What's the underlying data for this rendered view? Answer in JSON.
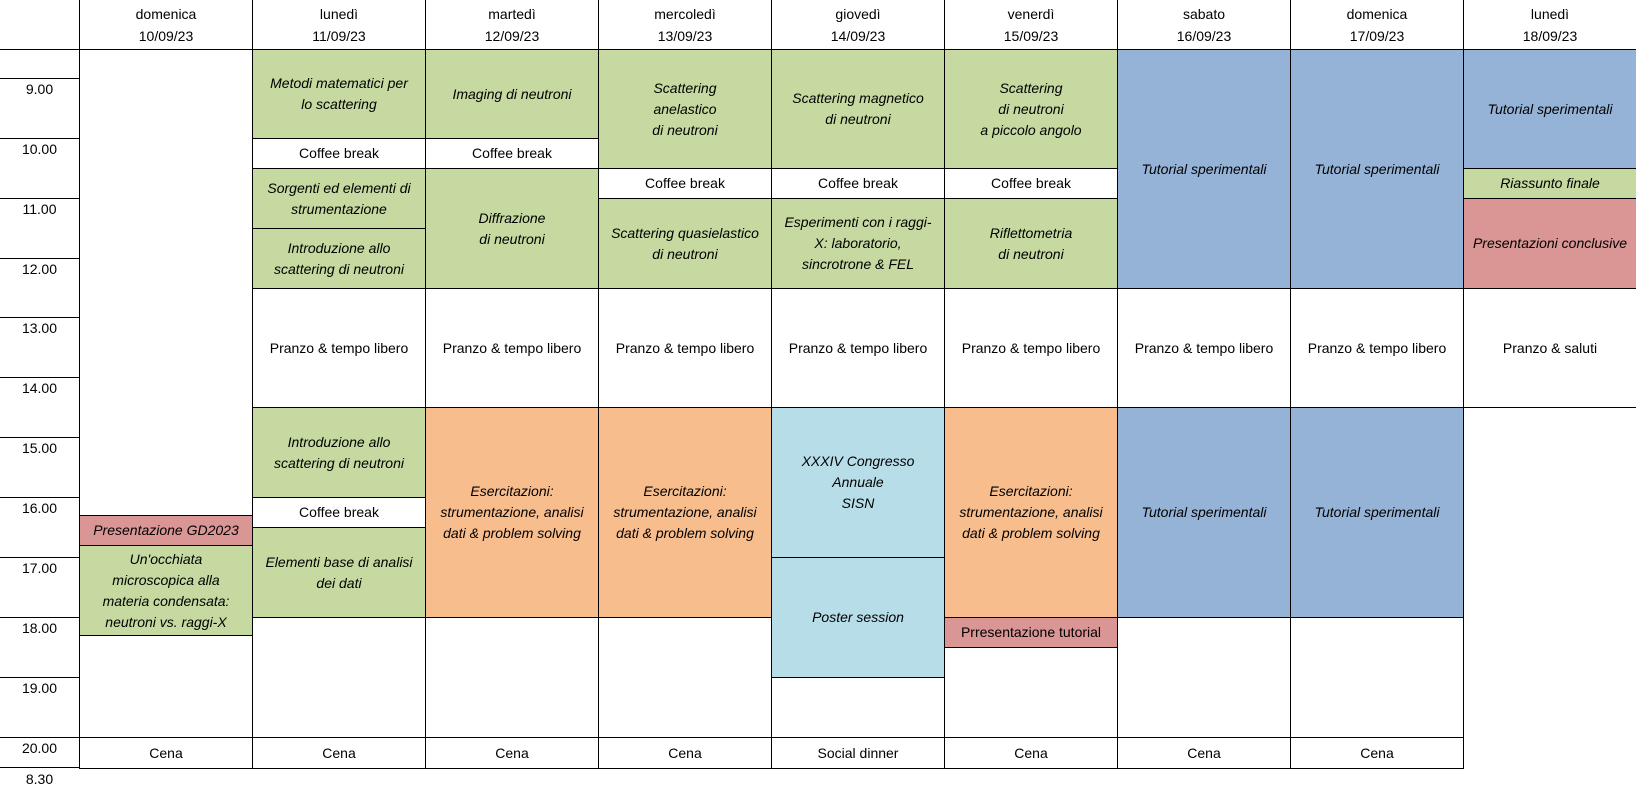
{
  "days": [
    {
      "name": "domenica",
      "date": "10/09/23"
    },
    {
      "name": "lunedì",
      "date": "11/09/23"
    },
    {
      "name": "martedì",
      "date": "12/09/23"
    },
    {
      "name": "mercoledì",
      "date": "13/09/23"
    },
    {
      "name": "giovedì",
      "date": "14/09/23"
    },
    {
      "name": "venerdì",
      "date": "15/09/23"
    },
    {
      "name": "sabato",
      "date": "16/09/23"
    },
    {
      "name": "domenica",
      "date": "17/09/23"
    },
    {
      "name": "lunedì",
      "date": "18/09/23"
    }
  ],
  "times": [
    "8.30",
    "9.00",
    "10.00",
    "11.00",
    "12.00",
    "13.00",
    "14.00",
    "15.00",
    "16.00",
    "17.00",
    "18.00",
    "19.00",
    "20.00"
  ],
  "colors": {
    "green": "#c5d9a0",
    "blue": "#95b3d7",
    "orange": "#f8bd8d",
    "pink": "#da9595",
    "cyan": "#b7dde8",
    "white": "#ffffff"
  },
  "events": [
    {
      "day": 0,
      "start": 8.5,
      "end": 16.3,
      "text": "",
      "color": "white",
      "italic": false
    },
    {
      "day": 0,
      "start": 16.3,
      "end": 16.8,
      "text": "Presentazione GD2023",
      "color": "pink",
      "italic": true
    },
    {
      "day": 0,
      "start": 16.8,
      "end": 18.3,
      "text": "Un'occhiata\nmicroscopica alla\nmateria condensata:\nneutroni vs. raggi-X",
      "color": "green",
      "italic": true
    },
    {
      "day": 0,
      "start": 18.3,
      "end": 20.0,
      "text": "",
      "color": "white",
      "italic": false
    },
    {
      "day": 0,
      "start": 20.0,
      "end": 20.5,
      "text": "Cena",
      "color": "white",
      "italic": false
    },
    {
      "day": 1,
      "start": 8.5,
      "end": 10.0,
      "text": "Metodi matematici per\nlo scattering",
      "color": "green",
      "italic": true
    },
    {
      "day": 1,
      "start": 10.0,
      "end": 10.5,
      "text": "Coffee break",
      "color": "white",
      "italic": false
    },
    {
      "day": 1,
      "start": 10.5,
      "end": 11.5,
      "text": "Sorgenti ed elementi di\nstrumentazione",
      "color": "green",
      "italic": true
    },
    {
      "day": 1,
      "start": 11.5,
      "end": 12.5,
      "text": "Introduzione allo\nscattering di neutroni",
      "color": "green",
      "italic": true
    },
    {
      "day": 1,
      "start": 12.5,
      "end": 14.5,
      "text": "Pranzo & tempo libero",
      "color": "white",
      "italic": false
    },
    {
      "day": 1,
      "start": 14.5,
      "end": 16.0,
      "text": "Introduzione allo\nscattering di neutroni",
      "color": "green",
      "italic": true
    },
    {
      "day": 1,
      "start": 16.0,
      "end": 16.5,
      "text": "Coffee break",
      "color": "white",
      "italic": false
    },
    {
      "day": 1,
      "start": 16.5,
      "end": 18.0,
      "text": "Elementi base di analisi\ndei dati",
      "color": "green",
      "italic": true
    },
    {
      "day": 1,
      "start": 18.0,
      "end": 20.0,
      "text": "",
      "color": "white",
      "italic": false
    },
    {
      "day": 1,
      "start": 20.0,
      "end": 20.5,
      "text": "Cena",
      "color": "white",
      "italic": false
    },
    {
      "day": 2,
      "start": 8.5,
      "end": 10.0,
      "text": "Imaging di neutroni",
      "color": "green",
      "italic": true
    },
    {
      "day": 2,
      "start": 10.0,
      "end": 10.5,
      "text": "Coffee break",
      "color": "white",
      "italic": false
    },
    {
      "day": 2,
      "start": 10.5,
      "end": 12.5,
      "text": "Diffrazione\ndi neutroni",
      "color": "green",
      "italic": true
    },
    {
      "day": 2,
      "start": 12.5,
      "end": 14.5,
      "text": "Pranzo & tempo libero",
      "color": "white",
      "italic": false
    },
    {
      "day": 2,
      "start": 14.5,
      "end": 18.0,
      "text": "Esercitazioni:\nstrumentazione, analisi\ndati & problem solving",
      "color": "orange",
      "italic": true
    },
    {
      "day": 2,
      "start": 18.0,
      "end": 20.0,
      "text": "",
      "color": "white",
      "italic": false
    },
    {
      "day": 2,
      "start": 20.0,
      "end": 20.5,
      "text": "Cena",
      "color": "white",
      "italic": false
    },
    {
      "day": 3,
      "start": 8.5,
      "end": 10.5,
      "text": "Scattering\nanelastico\ndi neutroni",
      "color": "green",
      "italic": true
    },
    {
      "day": 3,
      "start": 10.5,
      "end": 11.0,
      "text": "Coffee break",
      "color": "white",
      "italic": false
    },
    {
      "day": 3,
      "start": 11.0,
      "end": 12.5,
      "text": "Scattering quasielastico\ndi neutroni",
      "color": "green",
      "italic": true
    },
    {
      "day": 3,
      "start": 12.5,
      "end": 14.5,
      "text": "Pranzo & tempo libero",
      "color": "white",
      "italic": false
    },
    {
      "day": 3,
      "start": 14.5,
      "end": 18.0,
      "text": "Esercitazioni:\nstrumentazione, analisi\ndati & problem solving",
      "color": "orange",
      "italic": true
    },
    {
      "day": 3,
      "start": 18.0,
      "end": 20.0,
      "text": "",
      "color": "white",
      "italic": false
    },
    {
      "day": 3,
      "start": 20.0,
      "end": 20.5,
      "text": "Cena",
      "color": "white",
      "italic": false
    },
    {
      "day": 4,
      "start": 8.5,
      "end": 10.5,
      "text": "Scattering magnetico\ndi neutroni",
      "color": "green",
      "italic": true
    },
    {
      "day": 4,
      "start": 10.5,
      "end": 11.0,
      "text": "Coffee break",
      "color": "white",
      "italic": false
    },
    {
      "day": 4,
      "start": 11.0,
      "end": 12.5,
      "text": "Esperimenti con i raggi-\nX: laboratorio,\nsincrotrone & FEL",
      "color": "green",
      "italic": true
    },
    {
      "day": 4,
      "start": 12.5,
      "end": 14.5,
      "text": "Pranzo & tempo libero",
      "color": "white",
      "italic": false
    },
    {
      "day": 4,
      "start": 14.5,
      "end": 17.0,
      "text": "XXXIV Congresso Annuale\nSISN",
      "color": "cyan",
      "italic": true
    },
    {
      "day": 4,
      "start": 17.0,
      "end": 19.0,
      "text": "Poster session",
      "color": "cyan",
      "italic": true
    },
    {
      "day": 4,
      "start": 19.0,
      "end": 20.0,
      "text": "",
      "color": "white",
      "italic": false
    },
    {
      "day": 4,
      "start": 20.0,
      "end": 20.5,
      "text": "Social dinner",
      "color": "white",
      "italic": false
    },
    {
      "day": 5,
      "start": 8.5,
      "end": 10.5,
      "text": "Scattering\ndi neutroni\na piccolo angolo",
      "color": "green",
      "italic": true
    },
    {
      "day": 5,
      "start": 10.5,
      "end": 11.0,
      "text": "Coffee break",
      "color": "white",
      "italic": false
    },
    {
      "day": 5,
      "start": 11.0,
      "end": 12.5,
      "text": "Riflettometria\ndi neutroni",
      "color": "green",
      "italic": true
    },
    {
      "day": 5,
      "start": 12.5,
      "end": 14.5,
      "text": "Pranzo & tempo libero",
      "color": "white",
      "italic": false
    },
    {
      "day": 5,
      "start": 14.5,
      "end": 18.0,
      "text": "Esercitazioni:\nstrumentazione, analisi\ndati & problem solving",
      "color": "orange",
      "italic": true
    },
    {
      "day": 5,
      "start": 18.0,
      "end": 18.5,
      "text": "Prresentazione tutorial",
      "color": "pink",
      "italic": false
    },
    {
      "day": 5,
      "start": 18.5,
      "end": 20.0,
      "text": "",
      "color": "white",
      "italic": false
    },
    {
      "day": 5,
      "start": 20.0,
      "end": 20.5,
      "text": "Cena",
      "color": "white",
      "italic": false
    },
    {
      "day": 6,
      "start": 8.5,
      "end": 12.5,
      "text": "Tutorial sperimentali",
      "color": "blue",
      "italic": true
    },
    {
      "day": 6,
      "start": 12.5,
      "end": 14.5,
      "text": "Pranzo & tempo libero",
      "color": "white",
      "italic": false
    },
    {
      "day": 6,
      "start": 14.5,
      "end": 18.0,
      "text": "Tutorial sperimentali",
      "color": "blue",
      "italic": true
    },
    {
      "day": 6,
      "start": 18.0,
      "end": 20.0,
      "text": "",
      "color": "white",
      "italic": false
    },
    {
      "day": 6,
      "start": 20.0,
      "end": 20.5,
      "text": "Cena",
      "color": "white",
      "italic": false
    },
    {
      "day": 7,
      "start": 8.5,
      "end": 12.5,
      "text": "Tutorial sperimentali",
      "color": "blue",
      "italic": true
    },
    {
      "day": 7,
      "start": 12.5,
      "end": 14.5,
      "text": "Pranzo & tempo libero",
      "color": "white",
      "italic": false
    },
    {
      "day": 7,
      "start": 14.5,
      "end": 18.0,
      "text": "Tutorial sperimentali",
      "color": "blue",
      "italic": true
    },
    {
      "day": 7,
      "start": 18.0,
      "end": 20.0,
      "text": "",
      "color": "white",
      "italic": false
    },
    {
      "day": 7,
      "start": 20.0,
      "end": 20.5,
      "text": "Cena",
      "color": "white",
      "italic": false
    },
    {
      "day": 8,
      "start": 8.5,
      "end": 10.5,
      "text": "Tutorial sperimentali",
      "color": "blue",
      "italic": true
    },
    {
      "day": 8,
      "start": 10.5,
      "end": 11.0,
      "text": "Riassunto finale",
      "color": "green",
      "italic": true
    },
    {
      "day": 8,
      "start": 11.0,
      "end": 12.5,
      "text": "Presentazioni conclusive",
      "color": "pink",
      "italic": true
    },
    {
      "day": 8,
      "start": 12.5,
      "end": 14.5,
      "text": "Pranzo & saluti",
      "color": "white",
      "italic": false
    }
  ]
}
